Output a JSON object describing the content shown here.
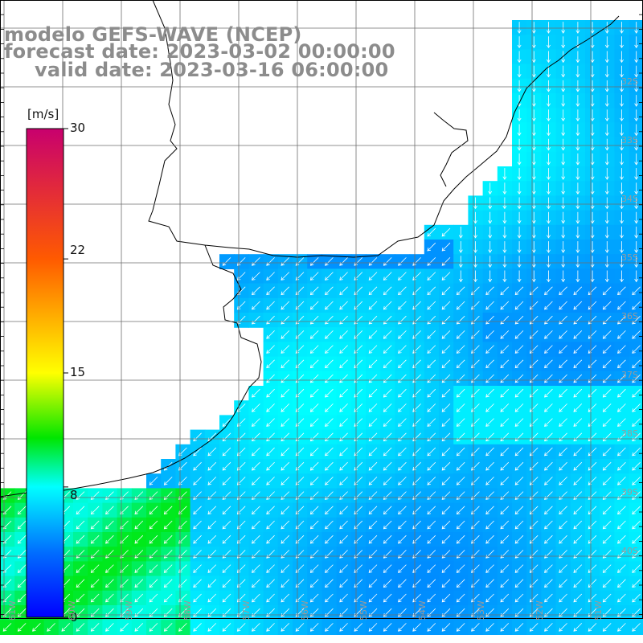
{
  "title": {
    "line1": "modelo GEFS-WAVE (NCEP)",
    "line2": "forecast date: 2023-03-02 00:00:00",
    "line3": "valid date: 2023-03-16 06:00:00"
  },
  "colorbar": {
    "unit": "[m/s]",
    "range": [
      0,
      30
    ],
    "ticks": [
      {
        "value": 30,
        "label": "30"
      },
      {
        "value": 22,
        "label": "22"
      },
      {
        "value": 15,
        "label": "15"
      },
      {
        "value": 8,
        "label": "8"
      },
      {
        "value": 0,
        "label": "0"
      }
    ],
    "colors": [
      "#0000ff",
      "#00ccff",
      "#00ffff",
      "#00ff00",
      "#ffff00",
      "#ff8000",
      "#ff0000",
      "#cc0066"
    ]
  },
  "map": {
    "field": "wind speed with direction arrows",
    "land_color": "#ffffff",
    "coast_color": "#000000",
    "grid_color": "#6e6e6e",
    "lat_labels": [
      "32S",
      "33S",
      "34S",
      "35S",
      "36S",
      "37S",
      "38S",
      "39S",
      "40S"
    ],
    "lon_labels": [
      "61W",
      "60W",
      "59W",
      "58W",
      "57W",
      "56W",
      "55W",
      "54W",
      "53W",
      "52W",
      "51W"
    ],
    "predominant_speed_ms": 7,
    "predominant_direction": "from north-east"
  }
}
